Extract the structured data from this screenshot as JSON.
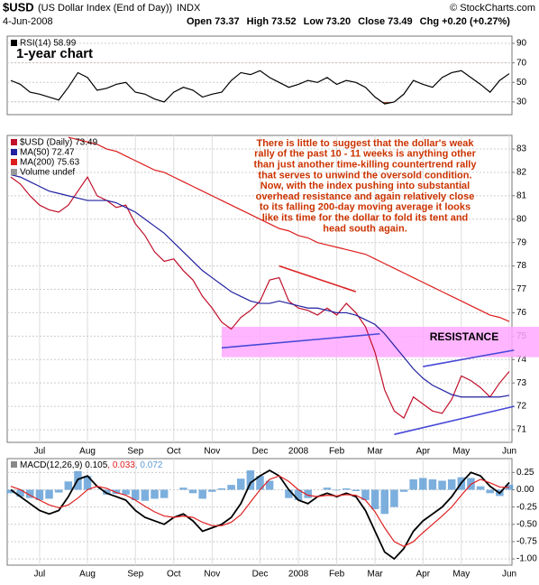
{
  "header": {
    "symbol": "$USD",
    "title": "(US Dollar Index (End of Day))",
    "exchange": "INDX",
    "date": "4-Jun-2008",
    "source": "© StockCharts.com",
    "stats": [
      {
        "label": "Open",
        "value": "73.37"
      },
      {
        "label": "High",
        "value": "73.52"
      },
      {
        "label": "Low",
        "value": "73.20"
      },
      {
        "label": "Close",
        "value": "73.49"
      },
      {
        "label": "Chg",
        "value": "+0.20 (+0.27%)"
      }
    ]
  },
  "chart_data": [
    {
      "type": "line",
      "caption": "1-year chart",
      "ylim": [
        17,
        97.4
      ],
      "yticks": [
        30,
        50,
        70,
        90
      ],
      "grid": true,
      "fill_below": 30,
      "fill_above": 70,
      "fill_color": "#8b4a2b",
      "series": [
        {
          "name": "RSI(14) 58.99",
          "color": "#000000",
          "values": [
            52,
            48,
            40,
            38,
            35,
            32,
            45,
            60,
            55,
            42,
            44,
            48,
            50,
            40,
            38,
            33,
            30,
            40,
            45,
            42,
            35,
            38,
            40,
            52,
            60,
            58,
            62,
            55,
            50,
            45,
            48,
            52,
            50,
            55,
            48,
            52,
            50,
            45,
            35,
            28,
            30,
            38,
            52,
            48,
            45,
            55,
            60,
            62,
            55,
            48,
            40,
            52,
            58.99
          ]
        }
      ]
    },
    {
      "type": "line",
      "ylim": [
        70.46,
        83.58
      ],
      "yticks": [
        71,
        72,
        73,
        74,
        75,
        76,
        77,
        78,
        79,
        80,
        81,
        82,
        83
      ],
      "grid": true,
      "categories": [
        null,
        null,
        null,
        "Jul",
        null,
        null,
        null,
        null,
        "Aug",
        null,
        null,
        null,
        null,
        "Sep",
        null,
        null,
        null,
        "Oct",
        null,
        null,
        null,
        "Nov",
        null,
        null,
        null,
        null,
        "Dec",
        null,
        null,
        null,
        "2008",
        null,
        null,
        null,
        "Feb",
        null,
        null,
        null,
        "Mar",
        null,
        null,
        null,
        null,
        "Apr",
        null,
        null,
        null,
        "May",
        null,
        null,
        null,
        null,
        "Jun"
      ],
      "volume_label": "Volume undef",
      "series": [
        {
          "name": "$USD (Daily) 73.49",
          "color": "#c0102a",
          "values": [
            81.8,
            81.5,
            81.0,
            80.6,
            80.4,
            80.3,
            80.6,
            81.2,
            81.8,
            81.0,
            80.8,
            80.5,
            80.6,
            79.8,
            79.3,
            78.6,
            78.2,
            78.3,
            77.8,
            77.4,
            76.7,
            76.2,
            75.6,
            75.3,
            75.8,
            76.1,
            76.5,
            77.4,
            77.5,
            76.5,
            76.2,
            76.1,
            75.9,
            76.2,
            75.9,
            76.4,
            76.0,
            75.4,
            74.3,
            72.7,
            71.8,
            71.5,
            72.4,
            72.1,
            71.8,
            71.7,
            72.3,
            73.3,
            73.1,
            72.8,
            72.4,
            73.0,
            73.49
          ]
        },
        {
          "name": "MA(50) 72.47",
          "color": "#2020a0",
          "values": [
            81.9,
            81.8,
            81.6,
            81.4,
            81.2,
            81.1,
            81.0,
            80.9,
            80.8,
            80.8,
            80.8,
            80.7,
            80.5,
            80.3,
            80.0,
            79.7,
            79.4,
            79.0,
            78.6,
            78.2,
            77.8,
            77.5,
            77.2,
            76.9,
            76.7,
            76.5,
            76.4,
            76.4,
            76.5,
            76.4,
            76.3,
            76.2,
            76.2,
            76.1,
            76.0,
            76.0,
            75.9,
            75.7,
            75.5,
            75.1,
            74.6,
            74.1,
            73.6,
            73.2,
            72.9,
            72.7,
            72.5,
            72.4,
            72.4,
            72.4,
            72.4,
            72.4,
            72.47
          ]
        },
        {
          "name": "MA(200) 75.63",
          "color": "#dd1c1c",
          "values": [
            null,
            null,
            null,
            null,
            null,
            null,
            83.5,
            83.4,
            83.3,
            83.2,
            83.0,
            82.9,
            82.7,
            82.5,
            82.3,
            82.1,
            82.0,
            81.8,
            81.6,
            81.4,
            81.2,
            81.0,
            80.8,
            80.6,
            80.4,
            80.2,
            80.0,
            79.8,
            79.6,
            79.5,
            79.3,
            79.2,
            79.0,
            78.9,
            78.8,
            78.7,
            78.6,
            78.5,
            78.3,
            78.1,
            77.9,
            77.7,
            77.5,
            77.3,
            77.1,
            76.9,
            76.7,
            76.5,
            76.3,
            76.1,
            75.9,
            75.8,
            75.63
          ]
        }
      ],
      "resistance": {
        "label": "RESISTANCE",
        "range": [
          74.1,
          75.4
        ],
        "color": "#ffa8ff",
        "x_start": 22
      },
      "trendlines": [
        {
          "color": "#dd2222",
          "x": [
            28,
            36
          ],
          "y": [
            78.0,
            76.9
          ]
        },
        {
          "color": "#4848d8",
          "x": [
            22,
            38.5
          ],
          "y": [
            74.5,
            75.1
          ]
        },
        {
          "color": "#4848d8",
          "x": [
            43,
            52.5
          ],
          "y": [
            73.7,
            74.4
          ]
        },
        {
          "color": "#4848d8",
          "x": [
            40,
            52.5
          ],
          "y": [
            70.8,
            72.0
          ]
        }
      ],
      "annotation": [
        "There is little to suggest that the dollar's weak",
        "rally of the past 10 - 11 weeks is anything other",
        "than just another time-killing countertrend rally",
        "that serves to unwind the oversold condition.",
        "Now, with the index pushing into substantial",
        "overhead resistance and again relatively close",
        "to its falling 200-day moving average it looks",
        "like its time for the dollar to fold its tent and",
        "head south again."
      ]
    },
    {
      "type": "line",
      "ylim": [
        -1.09,
        0.45
      ],
      "yticks": [
        0.25,
        {
          "value": 0,
          "label": "0.00"
        },
        -0.25,
        {
          "value": -0.5,
          "label": "-0.50"
        },
        -0.75,
        {
          "value": -1,
          "label": "-1.00"
        }
      ],
      "grid": true,
      "categories": [
        null,
        null,
        null,
        "Jul",
        null,
        null,
        null,
        null,
        "Aug",
        null,
        null,
        null,
        null,
        "Sep",
        null,
        null,
        null,
        "Oct",
        null,
        null,
        null,
        "Nov",
        null,
        null,
        null,
        null,
        "Dec",
        null,
        null,
        null,
        "2008",
        null,
        null,
        null,
        "Feb",
        null,
        null,
        null,
        "Mar",
        null,
        null,
        null,
        null,
        "Apr",
        null,
        null,
        null,
        "May",
        null,
        null,
        null,
        null,
        "Jun"
      ],
      "series": [
        {
          "name": "MACD(12,26,9) 0.105",
          "color": "#000000",
          "style": "line",
          "values": [
            0.0,
            -0.1,
            -0.2,
            -0.3,
            -0.35,
            -0.3,
            -0.1,
            0.15,
            0.2,
            0.05,
            -0.05,
            -0.1,
            -0.15,
            -0.3,
            -0.4,
            -0.45,
            -0.5,
            -0.4,
            -0.35,
            -0.45,
            -0.6,
            -0.55,
            -0.5,
            -0.4,
            -0.2,
            0.1,
            0.2,
            0.28,
            0.2,
            0.0,
            -0.15,
            -0.2,
            -0.1,
            -0.05,
            -0.1,
            -0.05,
            -0.1,
            -0.3,
            -0.6,
            -0.9,
            -1.0,
            -0.85,
            -0.6,
            -0.45,
            -0.35,
            -0.25,
            -0.1,
            0.1,
            0.25,
            0.2,
            0.05,
            -0.05,
            0.105
          ]
        },
        {
          "name": ", 0.033",
          "color": "#e02020",
          "style": "line",
          "values": [
            0.05,
            0.0,
            -0.08,
            -0.15,
            -0.22,
            -0.26,
            -0.22,
            -0.12,
            0.0,
            0.05,
            0.02,
            -0.04,
            -0.08,
            -0.15,
            -0.24,
            -0.32,
            -0.38,
            -0.4,
            -0.38,
            -0.4,
            -0.47,
            -0.52,
            -0.52,
            -0.47,
            -0.36,
            -0.18,
            0.0,
            0.15,
            0.2,
            0.12,
            0.0,
            -0.08,
            -0.1,
            -0.08,
            -0.09,
            -0.07,
            -0.08,
            -0.15,
            -0.32,
            -0.55,
            -0.75,
            -0.82,
            -0.75,
            -0.62,
            -0.5,
            -0.38,
            -0.25,
            -0.08,
            0.08,
            0.15,
            0.1,
            0.04,
            0.033
          ]
        },
        {
          "name": ", 0.072",
          "color": "#5b9bd5",
          "style": "histogram",
          "values": [
            -0.05,
            -0.1,
            -0.12,
            -0.15,
            -0.13,
            -0.04,
            0.12,
            0.27,
            0.2,
            0.0,
            -0.07,
            -0.06,
            -0.07,
            -0.15,
            -0.16,
            -0.13,
            -0.12,
            0.0,
            0.03,
            -0.05,
            -0.13,
            -0.03,
            0.02,
            0.07,
            0.16,
            0.28,
            0.2,
            0.13,
            0.0,
            -0.12,
            -0.15,
            -0.12,
            0.0,
            0.03,
            -0.01,
            0.02,
            -0.02,
            -0.15,
            -0.28,
            -0.35,
            -0.25,
            -0.03,
            0.15,
            0.17,
            0.15,
            0.13,
            0.15,
            0.18,
            0.17,
            0.05,
            -0.05,
            -0.09,
            0.072
          ]
        }
      ]
    }
  ]
}
